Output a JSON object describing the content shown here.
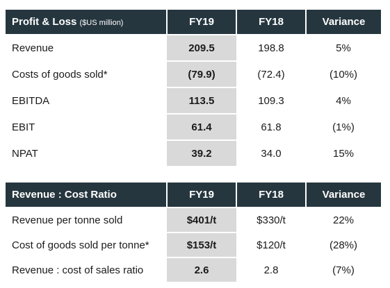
{
  "profit_loss": {
    "title": "Profit & Loss",
    "unit": "($US million)",
    "columns": [
      "FY19",
      "FY18",
      "Variance"
    ],
    "rows": [
      {
        "label": "Revenue",
        "fy19": "209.5",
        "fy18": "198.8",
        "variance": "5%"
      },
      {
        "label": "Costs of goods sold*",
        "fy19": "(79.9)",
        "fy18": "(72.4)",
        "variance": "(10%)"
      },
      {
        "label": "EBITDA",
        "fy19": "113.5",
        "fy18": "109.3",
        "variance": "4%"
      },
      {
        "label": "EBIT",
        "fy19": "61.4",
        "fy18": "61.8",
        "variance": "(1%)"
      },
      {
        "label": "NPAT",
        "fy19": "39.2",
        "fy18": "34.0",
        "variance": "15%"
      }
    ]
  },
  "revenue_cost": {
    "title": "Revenue : Cost Ratio",
    "columns": [
      "FY19",
      "FY18",
      "Variance"
    ],
    "rows": [
      {
        "label": "Revenue per tonne sold",
        "fy19": "$401/t",
        "fy18": "$330/t",
        "variance": "22%"
      },
      {
        "label": "Cost of goods sold per tonne*",
        "fy19": "$153/t",
        "fy18": "$120/t",
        "variance": "(28%)"
      },
      {
        "label": "Revenue : cost of sales ratio",
        "fy19": "2.6",
        "fy18": "2.8",
        "variance": "(7%)"
      }
    ]
  },
  "colors": {
    "header_bg": "#26363f",
    "header_text": "#ffffff",
    "fy19_highlight": "#d9d9d9"
  }
}
